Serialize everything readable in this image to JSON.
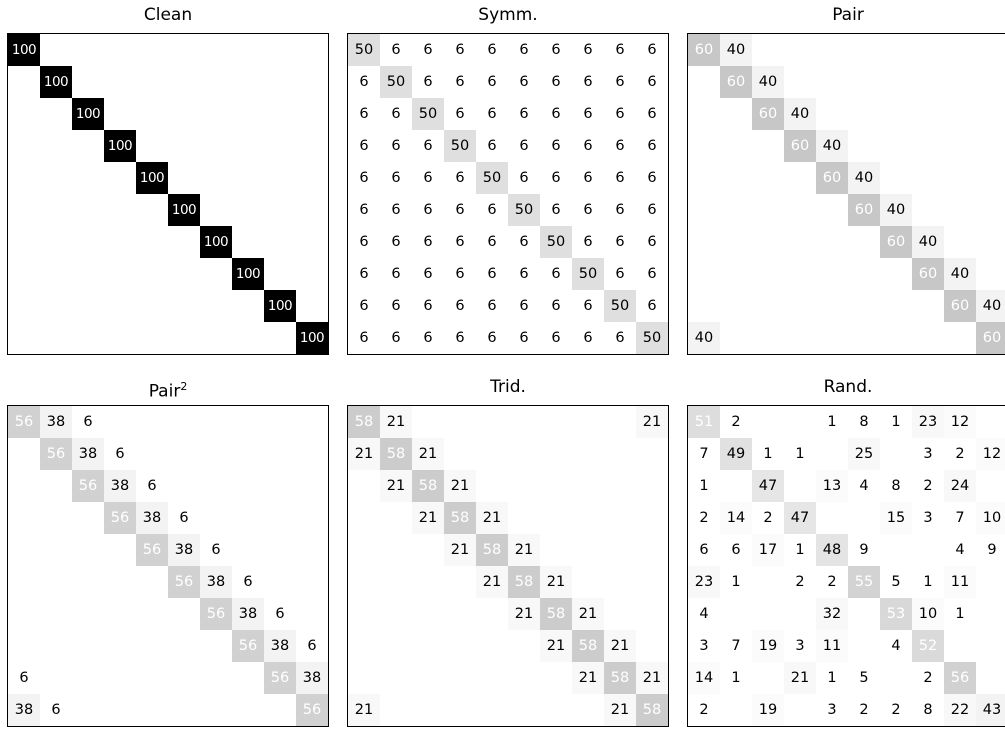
{
  "chart_data": [
    {
      "type": "heatmap",
      "title": "Clean",
      "matrix": [
        [
          100,
          0,
          0,
          0,
          0,
          0,
          0,
          0,
          0,
          0
        ],
        [
          0,
          100,
          0,
          0,
          0,
          0,
          0,
          0,
          0,
          0
        ],
        [
          0,
          0,
          100,
          0,
          0,
          0,
          0,
          0,
          0,
          0
        ],
        [
          0,
          0,
          0,
          100,
          0,
          0,
          0,
          0,
          0,
          0
        ],
        [
          0,
          0,
          0,
          0,
          100,
          0,
          0,
          0,
          0,
          0
        ],
        [
          0,
          0,
          0,
          0,
          0,
          100,
          0,
          0,
          0,
          0
        ],
        [
          0,
          0,
          0,
          0,
          0,
          0,
          100,
          0,
          0,
          0
        ],
        [
          0,
          0,
          0,
          0,
          0,
          0,
          0,
          100,
          0,
          0
        ],
        [
          0,
          0,
          0,
          0,
          0,
          0,
          0,
          0,
          100,
          0
        ],
        [
          0,
          0,
          0,
          0,
          0,
          0,
          0,
          0,
          0,
          100
        ]
      ]
    },
    {
      "type": "heatmap",
      "title": "Symm.",
      "matrix": [
        [
          50,
          6,
          6,
          6,
          6,
          6,
          6,
          6,
          6,
          6
        ],
        [
          6,
          50,
          6,
          6,
          6,
          6,
          6,
          6,
          6,
          6
        ],
        [
          6,
          6,
          50,
          6,
          6,
          6,
          6,
          6,
          6,
          6
        ],
        [
          6,
          6,
          6,
          50,
          6,
          6,
          6,
          6,
          6,
          6
        ],
        [
          6,
          6,
          6,
          6,
          50,
          6,
          6,
          6,
          6,
          6
        ],
        [
          6,
          6,
          6,
          6,
          6,
          50,
          6,
          6,
          6,
          6
        ],
        [
          6,
          6,
          6,
          6,
          6,
          6,
          50,
          6,
          6,
          6
        ],
        [
          6,
          6,
          6,
          6,
          6,
          6,
          6,
          50,
          6,
          6
        ],
        [
          6,
          6,
          6,
          6,
          6,
          6,
          6,
          6,
          50,
          6
        ],
        [
          6,
          6,
          6,
          6,
          6,
          6,
          6,
          6,
          6,
          50
        ]
      ]
    },
    {
      "type": "heatmap",
      "title": "Pair",
      "matrix": [
        [
          60,
          40,
          0,
          0,
          0,
          0,
          0,
          0,
          0,
          0
        ],
        [
          0,
          60,
          40,
          0,
          0,
          0,
          0,
          0,
          0,
          0
        ],
        [
          0,
          0,
          60,
          40,
          0,
          0,
          0,
          0,
          0,
          0
        ],
        [
          0,
          0,
          0,
          60,
          40,
          0,
          0,
          0,
          0,
          0
        ],
        [
          0,
          0,
          0,
          0,
          60,
          40,
          0,
          0,
          0,
          0
        ],
        [
          0,
          0,
          0,
          0,
          0,
          60,
          40,
          0,
          0,
          0
        ],
        [
          0,
          0,
          0,
          0,
          0,
          0,
          60,
          40,
          0,
          0
        ],
        [
          0,
          0,
          0,
          0,
          0,
          0,
          0,
          60,
          40,
          0
        ],
        [
          0,
          0,
          0,
          0,
          0,
          0,
          0,
          0,
          60,
          40
        ],
        [
          40,
          0,
          0,
          0,
          0,
          0,
          0,
          0,
          0,
          60
        ]
      ]
    },
    {
      "type": "heatmap",
      "title": "Pair",
      "title_sup": "2",
      "matrix": [
        [
          56,
          38,
          6,
          0,
          0,
          0,
          0,
          0,
          0,
          0
        ],
        [
          0,
          56,
          38,
          6,
          0,
          0,
          0,
          0,
          0,
          0
        ],
        [
          0,
          0,
          56,
          38,
          6,
          0,
          0,
          0,
          0,
          0
        ],
        [
          0,
          0,
          0,
          56,
          38,
          6,
          0,
          0,
          0,
          0
        ],
        [
          0,
          0,
          0,
          0,
          56,
          38,
          6,
          0,
          0,
          0
        ],
        [
          0,
          0,
          0,
          0,
          0,
          56,
          38,
          6,
          0,
          0
        ],
        [
          0,
          0,
          0,
          0,
          0,
          0,
          56,
          38,
          6,
          0
        ],
        [
          0,
          0,
          0,
          0,
          0,
          0,
          0,
          56,
          38,
          6
        ],
        [
          6,
          0,
          0,
          0,
          0,
          0,
          0,
          0,
          56,
          38
        ],
        [
          38,
          6,
          0,
          0,
          0,
          0,
          0,
          0,
          0,
          56
        ]
      ]
    },
    {
      "type": "heatmap",
      "title": "Trid.",
      "matrix": [
        [
          58,
          21,
          0,
          0,
          0,
          0,
          0,
          0,
          0,
          21
        ],
        [
          21,
          58,
          21,
          0,
          0,
          0,
          0,
          0,
          0,
          0
        ],
        [
          0,
          21,
          58,
          21,
          0,
          0,
          0,
          0,
          0,
          0
        ],
        [
          0,
          0,
          21,
          58,
          21,
          0,
          0,
          0,
          0,
          0
        ],
        [
          0,
          0,
          0,
          21,
          58,
          21,
          0,
          0,
          0,
          0
        ],
        [
          0,
          0,
          0,
          0,
          21,
          58,
          21,
          0,
          0,
          0
        ],
        [
          0,
          0,
          0,
          0,
          0,
          21,
          58,
          21,
          0,
          0
        ],
        [
          0,
          0,
          0,
          0,
          0,
          0,
          21,
          58,
          21,
          0
        ],
        [
          0,
          0,
          0,
          0,
          0,
          0,
          0,
          21,
          58,
          21
        ],
        [
          21,
          0,
          0,
          0,
          0,
          0,
          0,
          0,
          21,
          58
        ]
      ]
    },
    {
      "type": "heatmap",
      "title": "Rand.",
      "matrix": [
        [
          51,
          2,
          0,
          0,
          1,
          8,
          1,
          23,
          12,
          0
        ],
        [
          7,
          49,
          1,
          1,
          0,
          25,
          0,
          3,
          2,
          12
        ],
        [
          1,
          0,
          47,
          0,
          13,
          4,
          8,
          2,
          24,
          0
        ],
        [
          2,
          14,
          2,
          47,
          0,
          0,
          15,
          3,
          7,
          10
        ],
        [
          6,
          6,
          17,
          1,
          48,
          9,
          0,
          0,
          4,
          9
        ],
        [
          23,
          1,
          0,
          2,
          2,
          55,
          5,
          1,
          11,
          0
        ],
        [
          4,
          0,
          0,
          0,
          32,
          0,
          53,
          10,
          1,
          0
        ],
        [
          3,
          7,
          19,
          3,
          11,
          0,
          4,
          52,
          0,
          0
        ],
        [
          14,
          1,
          0,
          21,
          1,
          5,
          0,
          2,
          56,
          0
        ],
        [
          2,
          0,
          19,
          0,
          3,
          2,
          2,
          8,
          22,
          43
        ]
      ]
    }
  ]
}
